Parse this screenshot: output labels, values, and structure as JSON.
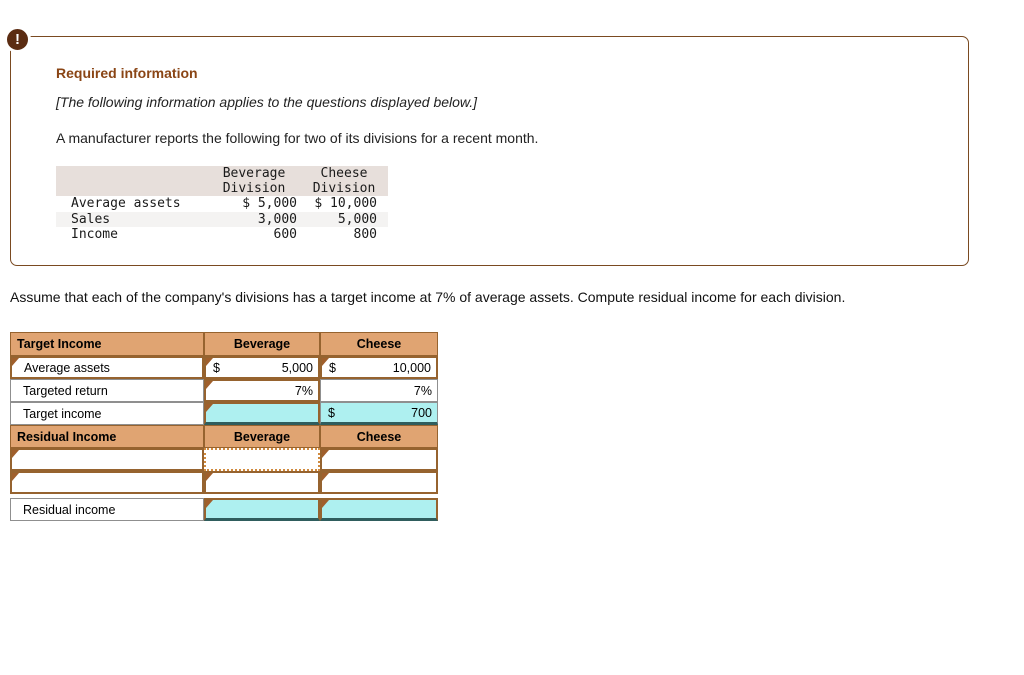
{
  "alert": {
    "icon_glyph": "!"
  },
  "info_box": {
    "title": "Required information",
    "note": "[The following information applies to the questions displayed below.]",
    "intro": "A manufacturer reports the following for two of its divisions for a recent month.",
    "data_table": {
      "columns": [
        {
          "line1": "Beverage",
          "line2": "Division"
        },
        {
          "line1": "Cheese",
          "line2": "Division"
        }
      ],
      "rows": [
        {
          "label": "Average assets",
          "beverage": "$ 5,000",
          "cheese": "$ 10,000"
        },
        {
          "label": "Sales",
          "beverage": "3,000",
          "cheese": "5,000"
        },
        {
          "label": "Income",
          "beverage": "600",
          "cheese": "800"
        }
      ]
    }
  },
  "question": "Assume that each of the company's divisions has a target income at 7% of average assets. Compute residual income for each division.",
  "worksheet": {
    "target_income": {
      "title": "Target Income",
      "col1": "Beverage",
      "col2": "Cheese",
      "rows": {
        "average_assets": {
          "label": "Average assets",
          "bev_symbol": "$",
          "bev_value": "5,000",
          "ch_symbol": "$",
          "ch_value": "10,000"
        },
        "targeted_return": {
          "label": "Targeted return",
          "bev_value": "7%",
          "ch_value": "7%"
        },
        "target_income": {
          "label": "Target income",
          "bev_value": "",
          "ch_symbol": "$",
          "ch_value": "700"
        }
      }
    },
    "residual_income": {
      "title": "Residual Income",
      "col1": "Beverage",
      "col2": "Cheese",
      "rows": {
        "blank1": {
          "label": "",
          "bev_value": "",
          "ch_value": ""
        },
        "blank2": {
          "label": "",
          "bev_value": "",
          "ch_value": ""
        },
        "residual_income": {
          "label": "Residual income",
          "bev_value": "",
          "ch_value": ""
        }
      }
    }
  },
  "colors": {
    "header_tan": "#e0a472",
    "cell_border_brown": "#96632f",
    "result_cyan": "#aef0f0",
    "alert_brown": "#5b2c12",
    "title_brown": "#8a4515",
    "info_table_header_bg": "#e7dfdb",
    "focus_dotted": "#d08a3e"
  }
}
